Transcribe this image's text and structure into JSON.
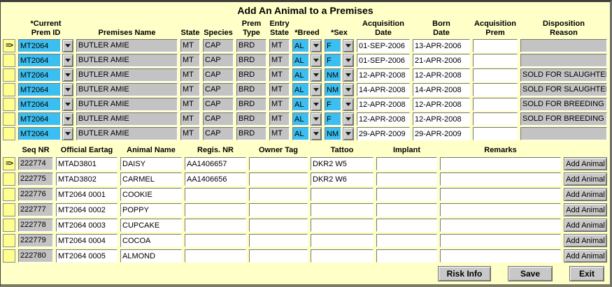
{
  "title": "Add An Animal to a Premises",
  "colors": {
    "bg_yellow": "#ffffc8",
    "indicator_yellow": "#ffff90",
    "field_cyan": "#3dbef0",
    "field_gray": "#c3c3c3"
  },
  "table1": {
    "headers": [
      {
        "l1": "*Current",
        "l2": "Prem ID"
      },
      {
        "l1": "",
        "l2": "Premises Name"
      },
      {
        "l1": "",
        "l2": "State"
      },
      {
        "l1": "",
        "l2": "Species"
      },
      {
        "l1": "Prem",
        "l2": "Type"
      },
      {
        "l1": "Entry",
        "l2": "State"
      },
      {
        "l1": "",
        "l2": "*Breed"
      },
      {
        "l1": "",
        "l2": "*Sex"
      },
      {
        "l1": "Acquisition",
        "l2": "Date"
      },
      {
        "l1": "Born",
        "l2": "Date"
      },
      {
        "l1": "Acquisition",
        "l2": "Prem"
      },
      {
        "l1": "Disposition",
        "l2": "Reason"
      }
    ],
    "rows": [
      {
        "indicator": "=>",
        "prem_id": "MT2064",
        "premises_name": "BUTLER AMIE",
        "state": "MT",
        "species": "CAP",
        "prem_type": "BRD",
        "entry_state": "MT",
        "breed": "AL",
        "sex": "F",
        "acquisition_date": "01-SEP-2006",
        "born_date": "13-APR-2006",
        "acquisition_prem": "",
        "disposition_reason": ""
      },
      {
        "indicator": "",
        "prem_id": "MT2064",
        "premises_name": "BUTLER AMIE",
        "state": "MT",
        "species": "CAP",
        "prem_type": "BRD",
        "entry_state": "MT",
        "breed": "AL",
        "sex": "F",
        "acquisition_date": "01-SEP-2006",
        "born_date": "21-APR-2006",
        "acquisition_prem": "",
        "disposition_reason": ""
      },
      {
        "indicator": "",
        "prem_id": "MT2064",
        "premises_name": "BUTLER AMIE",
        "state": "MT",
        "species": "CAP",
        "prem_type": "BRD",
        "entry_state": "MT",
        "breed": "AL",
        "sex": "NM",
        "acquisition_date": "12-APR-2008",
        "born_date": "12-APR-2008",
        "acquisition_prem": "",
        "disposition_reason": "SOLD FOR SLAUGHTER"
      },
      {
        "indicator": "",
        "prem_id": "MT2064",
        "premises_name": "BUTLER AMIE",
        "state": "MT",
        "species": "CAP",
        "prem_type": "BRD",
        "entry_state": "MT",
        "breed": "AL",
        "sex": "NM",
        "acquisition_date": "14-APR-2008",
        "born_date": "14-APR-2008",
        "acquisition_prem": "",
        "disposition_reason": "SOLD FOR SLAUGHTER"
      },
      {
        "indicator": "",
        "prem_id": "MT2064",
        "premises_name": "BUTLER AMIE",
        "state": "MT",
        "species": "CAP",
        "prem_type": "BRD",
        "entry_state": "MT",
        "breed": "AL",
        "sex": "F",
        "acquisition_date": "12-APR-2008",
        "born_date": "12-APR-2008",
        "acquisition_prem": "",
        "disposition_reason": "SOLD FOR BREEDING"
      },
      {
        "indicator": "",
        "prem_id": "MT2064",
        "premises_name": "BUTLER AMIE",
        "state": "MT",
        "species": "CAP",
        "prem_type": "BRD",
        "entry_state": "MT",
        "breed": "AL",
        "sex": "F",
        "acquisition_date": "12-APR-2008",
        "born_date": "12-APR-2008",
        "acquisition_prem": "",
        "disposition_reason": "SOLD FOR BREEDING"
      },
      {
        "indicator": "",
        "prem_id": "MT2064",
        "premises_name": "BUTLER AMIE",
        "state": "MT",
        "species": "CAP",
        "prem_type": "BRD",
        "entry_state": "MT",
        "breed": "AL",
        "sex": "NM",
        "acquisition_date": "29-APR-2009",
        "born_date": "29-APR-2009",
        "acquisition_prem": "",
        "disposition_reason": ""
      }
    ]
  },
  "table2": {
    "headers": [
      "Seq NR",
      "Official Eartag",
      "Animal Name",
      "Regis. NR",
      "Owner Tag",
      "Tattoo",
      "Implant",
      "Remarks"
    ],
    "add_button_label": "Add Animal",
    "rows": [
      {
        "indicator": "=>",
        "seq_nr": "222774",
        "official_eartag": "MTAD3801",
        "animal_name": "DAISY",
        "regis_nr": "AA1406657",
        "owner_tag": "",
        "tattoo": "DKR2 W5",
        "implant": "",
        "remarks": ""
      },
      {
        "indicator": "",
        "seq_nr": "222775",
        "official_eartag": "MTAD3802",
        "animal_name": "CARMEL",
        "regis_nr": "AA1406656",
        "owner_tag": "",
        "tattoo": "DKR2 W6",
        "implant": "",
        "remarks": ""
      },
      {
        "indicator": "",
        "seq_nr": "222776",
        "official_eartag": "MT2064 0001",
        "animal_name": "COOKIE",
        "regis_nr": "",
        "owner_tag": "",
        "tattoo": "",
        "implant": "",
        "remarks": ""
      },
      {
        "indicator": "",
        "seq_nr": "222777",
        "official_eartag": "MT2064 0002",
        "animal_name": "POPPY",
        "regis_nr": "",
        "owner_tag": "",
        "tattoo": "",
        "implant": "",
        "remarks": ""
      },
      {
        "indicator": "",
        "seq_nr": "222778",
        "official_eartag": "MT2064 0003",
        "animal_name": "CUPCAKE",
        "regis_nr": "",
        "owner_tag": "",
        "tattoo": "",
        "implant": "",
        "remarks": ""
      },
      {
        "indicator": "",
        "seq_nr": "222779",
        "official_eartag": "MT2064 0004",
        "animal_name": "COCOA",
        "regis_nr": "",
        "owner_tag": "",
        "tattoo": "",
        "implant": "",
        "remarks": ""
      },
      {
        "indicator": "",
        "seq_nr": "222780",
        "official_eartag": "MT2064 0005",
        "animal_name": "ALMOND",
        "regis_nr": "",
        "owner_tag": "",
        "tattoo": "",
        "implant": "",
        "remarks": ""
      }
    ]
  },
  "footer": {
    "risk_info_label": "Risk Info",
    "save_label": "Save",
    "exit_label": "Exit"
  }
}
